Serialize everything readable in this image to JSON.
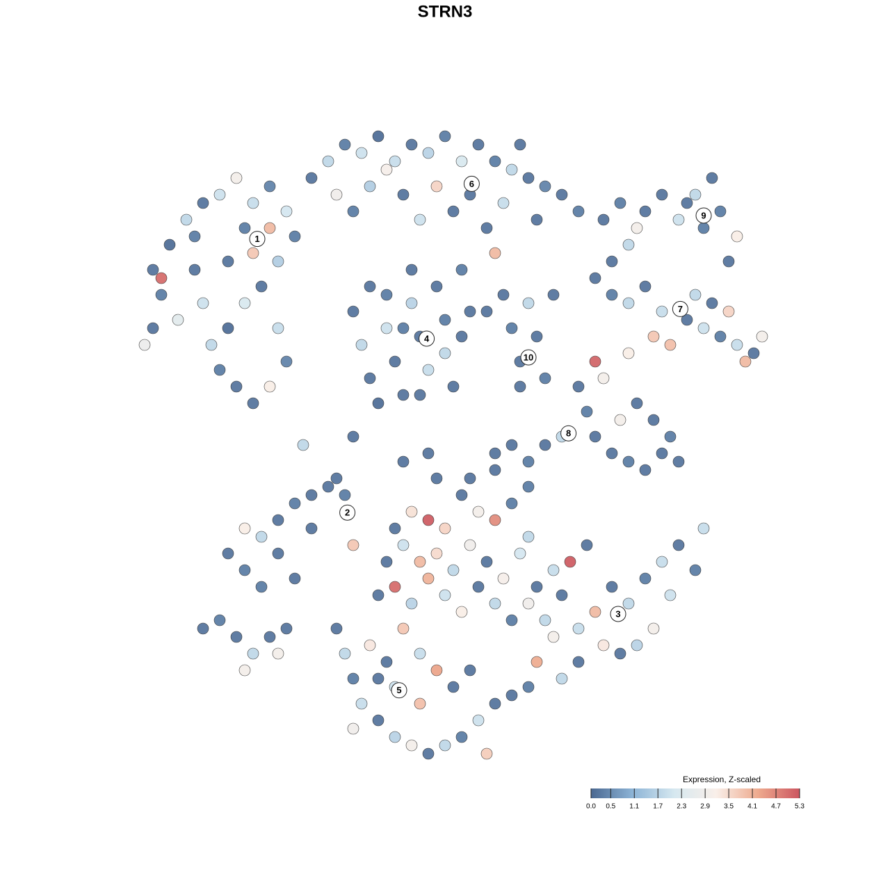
{
  "chart_data": {
    "type": "scatter",
    "title": "STRN3",
    "xlim": [
      -40,
      42
    ],
    "ylim": [
      -40,
      40
    ],
    "colorbar": {
      "title": "Expression, Z-scaled",
      "lim": [
        0,
        5.3
      ],
      "ticks": [
        {
          "value": 0,
          "label": "0.0"
        },
        0.5,
        1.1,
        1.7,
        2.3,
        2.9,
        3.5,
        4.1,
        4.7,
        5.3
      ],
      "colors": [
        "#4a6891",
        "#8db4d6",
        "#d6e8f0",
        "#f9efe9",
        "#eeaa8e",
        "#cc5660"
      ]
    },
    "clusters": [
      {
        "label": "1",
        "x": -22.5,
        "y": 24.7
      },
      {
        "label": "6",
        "x": 3.2,
        "y": 31.3
      },
      {
        "label": "9",
        "x": 31.0,
        "y": 27.5
      },
      {
        "label": "7",
        "x": 28.2,
        "y": 16.3
      },
      {
        "label": "4",
        "x": -2.2,
        "y": 12.75
      },
      {
        "label": "10",
        "x": 10.0,
        "y": 10.5
      },
      {
        "label": "8",
        "x": 14.8,
        "y": 1.4
      },
      {
        "label": "2",
        "x": -11.7,
        "y": -8.1
      },
      {
        "label": "3",
        "x": 20.75,
        "y": -20.25
      },
      {
        "label": "5",
        "x": -5.5,
        "y": -29.4
      }
    ],
    "points": [
      [
        -35,
        21,
        0.2
      ],
      [
        -34,
        18,
        0.3
      ],
      [
        -33,
        24,
        0.1
      ],
      [
        -31,
        27,
        1.8
      ],
      [
        -29,
        29,
        0.2
      ],
      [
        -27,
        30,
        2.0
      ],
      [
        -25,
        32,
        3.0
      ],
      [
        -23,
        29,
        1.9
      ],
      [
        -21,
        31,
        0.4
      ],
      [
        -19,
        28,
        2.1
      ],
      [
        -18,
        25,
        0.3
      ],
      [
        -20,
        22,
        1.6
      ],
      [
        -22,
        19,
        0.2
      ],
      [
        -24,
        17,
        2.2
      ],
      [
        -26,
        14,
        0.1
      ],
      [
        -28,
        12,
        1.8
      ],
      [
        -27,
        9,
        0.3
      ],
      [
        -25,
        7,
        0.2
      ],
      [
        -23,
        5,
        0.2
      ],
      [
        -21,
        7,
        3.2
      ],
      [
        -19,
        10,
        0.4
      ],
      [
        -20,
        14,
        1.9
      ],
      [
        -23,
        23,
        3.8
      ],
      [
        -30,
        21,
        0.2
      ],
      [
        -32,
        15,
        2.5
      ],
      [
        -34,
        20,
        5.0
      ],
      [
        -35,
        14,
        0.2
      ],
      [
        -36,
        12,
        2.8
      ],
      [
        -29,
        17,
        2.0
      ],
      [
        -24,
        26,
        0.3
      ],
      [
        -21,
        26,
        4.0
      ],
      [
        -26,
        22,
        0.2
      ],
      [
        -30,
        25,
        0.3
      ],
      [
        -16,
        32,
        0.2
      ],
      [
        -14,
        34,
        1.8
      ],
      [
        -12,
        36,
        0.3
      ],
      [
        -10,
        35,
        2.0
      ],
      [
        -8,
        37,
        0.1
      ],
      [
        -6,
        34,
        1.9
      ],
      [
        -4,
        36,
        0.2
      ],
      [
        -2,
        35,
        1.7
      ],
      [
        0,
        37,
        0.3
      ],
      [
        2,
        34,
        2.2
      ],
      [
        4,
        36,
        0.2
      ],
      [
        6,
        34,
        0.3
      ],
      [
        8,
        33,
        1.8
      ],
      [
        10,
        32,
        0.2
      ],
      [
        12,
        31,
        0.4
      ],
      [
        14,
        30,
        0.2
      ],
      [
        16,
        28,
        0.3
      ],
      [
        -13,
        30,
        2.9
      ],
      [
        -9,
        31,
        1.6
      ],
      [
        -5,
        30,
        0.2
      ],
      [
        -1,
        31,
        3.6
      ],
      [
        3,
        30,
        0.2
      ],
      [
        7,
        29,
        1.9
      ],
      [
        11,
        27,
        0.2
      ],
      [
        -11,
        28,
        0.3
      ],
      [
        -3,
        27,
        2.0
      ],
      [
        5,
        26,
        0.2
      ],
      [
        -7,
        33,
        3.1
      ],
      [
        9,
        36,
        0.2
      ],
      [
        1,
        28,
        0.2
      ],
      [
        6,
        23,
        4.0
      ],
      [
        2,
        21,
        0.3
      ],
      [
        -4,
        21,
        0.2
      ],
      [
        -11,
        16,
        0.2
      ],
      [
        -10,
        12,
        1.8
      ],
      [
        -9,
        8,
        0.2
      ],
      [
        -7,
        18,
        0.3
      ],
      [
        -7,
        14,
        2.0
      ],
      [
        -6,
        10,
        0.2
      ],
      [
        -5,
        6,
        0.2
      ],
      [
        -4,
        17,
        1.7
      ],
      [
        -3,
        13,
        0.2
      ],
      [
        -2,
        9,
        1.9
      ],
      [
        -1,
        19,
        0.2
      ],
      [
        0,
        15,
        0.3
      ],
      [
        0,
        11,
        1.8
      ],
      [
        1,
        7,
        0.2
      ],
      [
        -8,
        5,
        0.1
      ],
      [
        2,
        13,
        0.2
      ],
      [
        -3,
        6,
        0.2
      ],
      [
        -5,
        14,
        0.3
      ],
      [
        -9,
        19,
        0.2
      ],
      [
        3,
        16,
        0.2
      ],
      [
        7,
        18,
        0.2
      ],
      [
        8,
        14,
        0.3
      ],
      [
        9,
        10,
        0.2
      ],
      [
        10,
        17,
        1.8
      ],
      [
        11,
        13,
        0.2
      ],
      [
        12,
        8,
        0.3
      ],
      [
        13,
        18,
        0.2
      ],
      [
        9,
        7,
        0.2
      ],
      [
        5,
        16,
        0.2
      ],
      [
        19,
        27,
        0.2
      ],
      [
        21,
        29,
        0.3
      ],
      [
        23,
        26,
        3.0
      ],
      [
        24,
        28,
        0.2
      ],
      [
        26,
        30,
        0.2
      ],
      [
        28,
        27,
        2.0
      ],
      [
        30,
        30,
        1.8
      ],
      [
        32,
        32,
        0.2
      ],
      [
        33,
        28,
        0.3
      ],
      [
        35,
        25,
        3.2
      ],
      [
        34,
        22,
        0.2
      ],
      [
        22,
        24,
        1.8
      ],
      [
        29,
        29,
        0.2
      ],
      [
        31,
        26,
        0.3
      ],
      [
        18,
        20,
        0.2
      ],
      [
        20,
        18,
        0.3
      ],
      [
        22,
        17,
        1.8
      ],
      [
        24,
        19,
        0.2
      ],
      [
        26,
        16,
        1.9
      ],
      [
        25,
        13,
        3.8
      ],
      [
        27,
        12,
        3.9
      ],
      [
        29,
        15,
        0.2
      ],
      [
        31,
        14,
        2.0
      ],
      [
        33,
        13,
        0.3
      ],
      [
        35,
        12,
        1.9
      ],
      [
        37,
        11,
        0.2
      ],
      [
        38,
        13,
        3.0
      ],
      [
        36,
        10,
        4.0
      ],
      [
        32,
        17,
        0.2
      ],
      [
        30,
        18,
        1.8
      ],
      [
        34,
        16,
        3.6
      ],
      [
        20,
        22,
        0.2
      ],
      [
        22,
        11,
        3.2
      ],
      [
        18,
        10,
        5.1
      ],
      [
        16,
        7,
        0.2
      ],
      [
        17,
        4,
        0.3
      ],
      [
        18,
        1,
        0.2
      ],
      [
        20,
        -1,
        0.2
      ],
      [
        22,
        -2,
        0.3
      ],
      [
        24,
        -3,
        0.2
      ],
      [
        26,
        -1,
        0.2
      ],
      [
        27,
        1,
        0.3
      ],
      [
        25,
        3,
        0.2
      ],
      [
        21,
        3,
        3.0
      ],
      [
        19,
        8,
        3.0
      ],
      [
        23,
        5,
        0.2
      ],
      [
        28,
        -2,
        0.2
      ],
      [
        14,
        1,
        1.8
      ],
      [
        12,
        0,
        0.2
      ],
      [
        10,
        -2,
        0.3
      ],
      [
        8,
        0,
        0.2
      ],
      [
        6,
        -1,
        0.2
      ],
      [
        -26,
        -13,
        0.2
      ],
      [
        -24,
        -15,
        0.3
      ],
      [
        -22,
        -11,
        1.8
      ],
      [
        -20,
        -9,
        0.2
      ],
      [
        -18,
        -7,
        0.3
      ],
      [
        -16,
        -6,
        0.2
      ],
      [
        -14,
        -5,
        0.2
      ],
      [
        -12,
        -6,
        0.3
      ],
      [
        -20,
        -13,
        0.2
      ],
      [
        -18,
        -16,
        0.2
      ],
      [
        -22,
        -17,
        0.3
      ],
      [
        -24,
        -10,
        3.2
      ],
      [
        -16,
        -10,
        0.2
      ],
      [
        -11,
        -12,
        3.8
      ],
      [
        -13,
        -4,
        0.2
      ],
      [
        -6,
        -10,
        0.2
      ],
      [
        -4,
        -8,
        3.4
      ],
      [
        -2,
        -9,
        5.2
      ],
      [
        0,
        -10,
        3.6
      ],
      [
        2,
        -6,
        0.2
      ],
      [
        4,
        -8,
        3.0
      ],
      [
        6,
        -9,
        4.6
      ],
      [
        8,
        -7,
        0.3
      ],
      [
        10,
        -11,
        1.8
      ],
      [
        -7,
        -14,
        0.2
      ],
      [
        -5,
        -12,
        2.0
      ],
      [
        -3,
        -14,
        4.0
      ],
      [
        -1,
        -13,
        3.5
      ],
      [
        1,
        -15,
        1.8
      ],
      [
        3,
        -12,
        2.9
      ],
      [
        5,
        -14,
        0.2
      ],
      [
        7,
        -16,
        3.1
      ],
      [
        9,
        -13,
        2.1
      ],
      [
        11,
        -17,
        0.2
      ],
      [
        13,
        -15,
        1.9
      ],
      [
        -8,
        -18,
        0.2
      ],
      [
        -6,
        -17,
        5.0
      ],
      [
        -4,
        -19,
        1.7
      ],
      [
        -2,
        -16,
        4.1
      ],
      [
        0,
        -18,
        2.0
      ],
      [
        2,
        -20,
        3.2
      ],
      [
        4,
        -17,
        0.2
      ],
      [
        6,
        -19,
        1.8
      ],
      [
        8,
        -21,
        0.3
      ],
      [
        10,
        -19,
        2.9
      ],
      [
        12,
        -21,
        1.8
      ],
      [
        14,
        -18,
        0.2
      ],
      [
        15,
        -14,
        5.2
      ],
      [
        16,
        -22,
        1.9
      ],
      [
        18,
        -20,
        4.0
      ],
      [
        20,
        -17,
        0.2
      ],
      [
        22,
        -19,
        1.8
      ],
      [
        24,
        -16,
        0.3
      ],
      [
        26,
        -14,
        1.9
      ],
      [
        28,
        -12,
        0.2
      ],
      [
        30,
        -15,
        0.3
      ],
      [
        27,
        -18,
        2.0
      ],
      [
        25,
        -22,
        3.0
      ],
      [
        23,
        -24,
        1.7
      ],
      [
        21,
        -25,
        0.2
      ],
      [
        19,
        -24,
        3.3
      ],
      [
        16,
        -26,
        0.2
      ],
      [
        13,
        -23,
        3.0
      ],
      [
        11,
        -26,
        4.2
      ],
      [
        14,
        -28,
        1.8
      ],
      [
        3,
        -4,
        0.2
      ],
      [
        -1,
        -4,
        0.2
      ],
      [
        6,
        -3,
        0.2
      ],
      [
        10,
        -5,
        0.3
      ],
      [
        17,
        -12,
        0.2
      ],
      [
        31,
        -10,
        1.9
      ],
      [
        -13,
        -22,
        0.2
      ],
      [
        -12,
        -25,
        1.8
      ],
      [
        -11,
        -28,
        0.3
      ],
      [
        -10,
        -31,
        1.9
      ],
      [
        -8,
        -33,
        0.2
      ],
      [
        -6,
        -35,
        1.7
      ],
      [
        -4,
        -36,
        3.0
      ],
      [
        -2,
        -37,
        0.2
      ],
      [
        0,
        -36,
        1.8
      ],
      [
        2,
        -35,
        0.3
      ],
      [
        4,
        -33,
        2.0
      ],
      [
        6,
        -31,
        0.2
      ],
      [
        8,
        -30,
        0.2
      ],
      [
        10,
        -29,
        0.3
      ],
      [
        -9,
        -24,
        3.3
      ],
      [
        -7,
        -26,
        0.2
      ],
      [
        -5,
        -22,
        3.8
      ],
      [
        -3,
        -25,
        1.9
      ],
      [
        -1,
        -27,
        4.3
      ],
      [
        1,
        -29,
        0.2
      ],
      [
        -6,
        -29,
        2.0
      ],
      [
        -3,
        -31,
        3.9
      ],
      [
        -8,
        -28,
        0.2
      ],
      [
        3,
        -27,
        0.2
      ],
      [
        5,
        -37,
        3.7
      ],
      [
        -11,
        -34,
        2.9
      ],
      [
        -29,
        -22,
        0.2
      ],
      [
        -27,
        -21,
        0.3
      ],
      [
        -25,
        -23,
        0.2
      ],
      [
        -23,
        -25,
        1.8
      ],
      [
        -21,
        -23,
        0.2
      ],
      [
        -20,
        -25,
        3.0
      ],
      [
        -24,
        -27,
        3.0
      ],
      [
        -19,
        -22,
        0.2
      ],
      [
        -17,
        0,
        1.8
      ],
      [
        -11,
        1,
        0.2
      ],
      [
        -5,
        -2,
        0.2
      ],
      [
        -2,
        -1,
        0.2
      ]
    ]
  }
}
